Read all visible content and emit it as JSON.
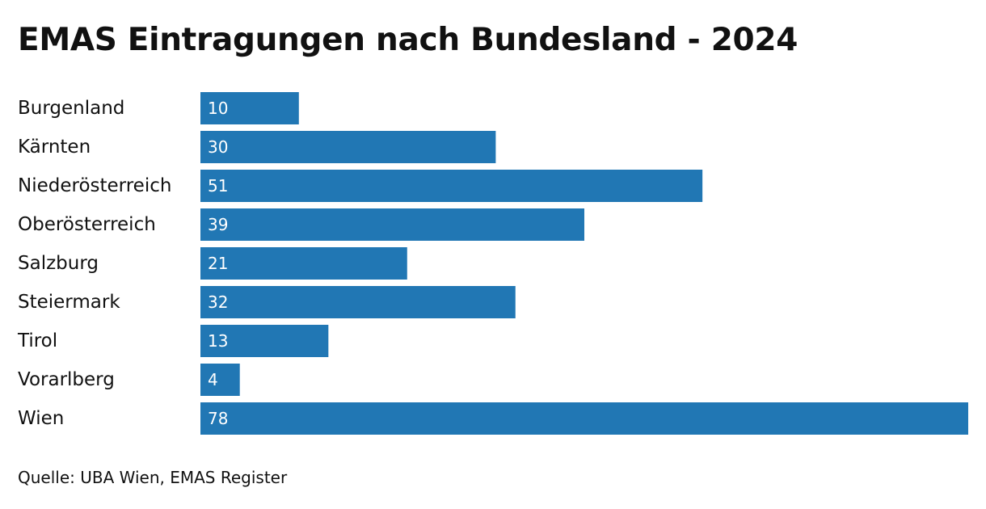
{
  "chart_data": {
    "type": "bar",
    "orientation": "horizontal",
    "title": "EMAS Eintragungen nach Bundesland - 2024",
    "categories": [
      "Burgenland",
      "Kärnten",
      "Niederösterreich",
      "Oberösterreich",
      "Salzburg",
      "Steiermark",
      "Tirol",
      "Vorarlberg",
      "Wien"
    ],
    "values": [
      10,
      30,
      51,
      39,
      21,
      32,
      13,
      4,
      78
    ],
    "xlabel": "",
    "ylabel": "",
    "xlim": [
      0,
      78
    ],
    "grid": false,
    "data_labels": "inside-left",
    "bar_color": "#2177b4",
    "source": "Quelle: UBA Wien, EMAS Register"
  }
}
